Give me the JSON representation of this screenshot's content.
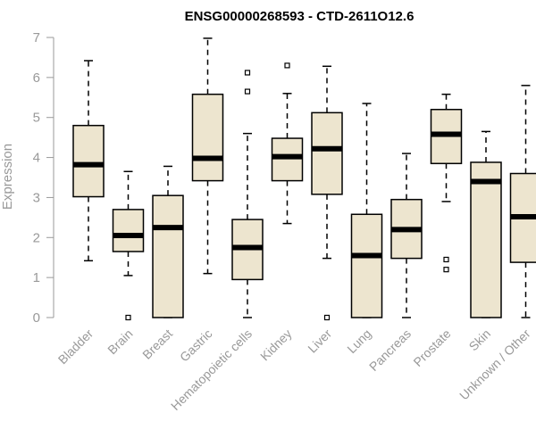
{
  "chart_data": {
    "type": "boxplot",
    "title": "ENSG00000268593 - CTD-2611O12.6",
    "xlabel": "",
    "ylabel": "Expression",
    "ylim": [
      0,
      7
    ],
    "yticks": [
      0,
      1,
      2,
      3,
      4,
      5,
      6,
      7
    ],
    "grid": false,
    "box_color": "#ede5cf",
    "categories": [
      "Bladder",
      "Brain",
      "Breast",
      "Gastric",
      "Hematopoietic cells",
      "Kidney",
      "Liver",
      "Lung",
      "Pancreas",
      "Prostate",
      "Skin",
      "Unknown / Other"
    ],
    "boxes": [
      {
        "whislo": 1.42,
        "q1": 3.02,
        "med": 3.82,
        "q3": 4.8,
        "whishi": 6.42,
        "fliers": []
      },
      {
        "whislo": 1.05,
        "q1": 1.65,
        "med": 2.05,
        "q3": 2.7,
        "whishi": 3.65,
        "fliers": [
          0.0
        ]
      },
      {
        "whislo": 0.0,
        "q1": 0.0,
        "med": 2.25,
        "q3": 3.05,
        "whishi": 3.78,
        "fliers": []
      },
      {
        "whislo": 1.1,
        "q1": 3.42,
        "med": 3.98,
        "q3": 5.58,
        "whishi": 6.98,
        "fliers": []
      },
      {
        "whislo": 0.0,
        "q1": 0.95,
        "med": 1.75,
        "q3": 2.45,
        "whishi": 4.6,
        "fliers": [
          5.65,
          6.12
        ]
      },
      {
        "whislo": 2.35,
        "q1": 3.42,
        "med": 4.02,
        "q3": 4.48,
        "whishi": 5.6,
        "fliers": [
          6.3
        ]
      },
      {
        "whislo": 1.48,
        "q1": 3.08,
        "med": 4.22,
        "q3": 5.12,
        "whishi": 6.28,
        "fliers": [
          0.0
        ]
      },
      {
        "whislo": 0.0,
        "q1": 0.0,
        "med": 1.55,
        "q3": 2.58,
        "whishi": 5.35,
        "fliers": []
      },
      {
        "whislo": 0.0,
        "q1": 1.48,
        "med": 2.2,
        "q3": 2.95,
        "whishi": 4.1,
        "fliers": []
      },
      {
        "whislo": 2.9,
        "q1": 3.85,
        "med": 4.58,
        "q3": 5.2,
        "whishi": 5.58,
        "fliers": [
          1.2,
          1.45
        ]
      },
      {
        "whislo": 0.0,
        "q1": 0.0,
        "med": 3.4,
        "q3": 3.88,
        "whishi": 4.65,
        "fliers": []
      },
      {
        "whislo": 0.0,
        "q1": 1.38,
        "med": 2.52,
        "q3": 3.6,
        "whishi": 5.8,
        "fliers": []
      }
    ]
  }
}
